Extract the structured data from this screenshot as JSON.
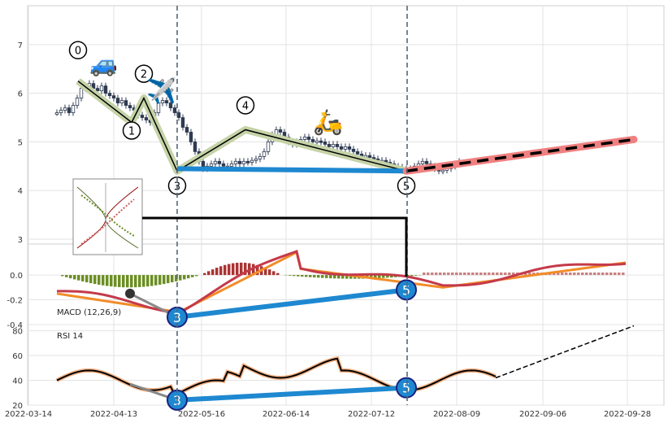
{
  "chart_data": [
    {
      "type": "line",
      "panel": "price",
      "description_of_marks": "candlesticks with wave pattern overlay",
      "ylim": [
        2.9,
        7.8
      ],
      "yticks": [
        3,
        4,
        5,
        6,
        7
      ],
      "price_series": [
        5.6,
        5.65,
        5.7,
        5.6,
        5.75,
        5.9,
        6.1,
        6.15,
        6.2,
        6.1,
        6.05,
        6.15,
        6.0,
        5.95,
        5.9,
        5.8,
        5.85,
        5.75,
        5.7,
        5.65,
        5.55,
        5.5,
        5.45,
        5.4,
        5.6,
        5.8,
        5.85,
        5.8,
        5.7,
        5.6,
        5.5,
        5.3,
        5.2,
        5.0,
        4.8,
        4.6,
        4.45,
        4.5,
        4.55,
        4.6,
        4.55,
        4.5,
        4.5,
        4.55,
        4.6,
        4.55,
        4.6,
        4.58,
        4.62,
        4.65,
        4.7,
        4.8,
        5.0,
        5.15,
        5.25,
        5.2,
        5.1,
        5.0,
        4.95,
        5.0,
        5.05,
        5.1,
        5.05,
        5.0,
        5.02,
        5.0,
        4.95,
        4.9,
        4.95,
        4.9,
        4.85,
        4.9,
        4.85,
        4.8,
        4.75,
        4.7,
        4.72,
        4.68,
        4.65,
        4.6,
        4.62,
        4.58,
        4.55,
        4.5,
        4.48,
        4.45,
        4.42,
        4.45,
        4.5,
        4.55,
        4.6,
        4.55,
        4.5,
        4.45,
        4.4,
        4.42,
        4.45,
        4.5,
        4.55,
        4.6
      ],
      "wave_points": [
        {
          "label": "0",
          "value": 6.25
        },
        {
          "label": "1",
          "value": 5.4
        },
        {
          "label": "2",
          "value": 5.9
        },
        {
          "label": "3",
          "value": 4.4
        },
        {
          "label": "4",
          "value": 5.25
        },
        {
          "label": "5",
          "value": 4.4
        }
      ],
      "support_line": {
        "from": 4.45,
        "to": 4.4
      },
      "projection": {
        "from": 4.4,
        "to": 5.05
      }
    },
    {
      "type": "bar",
      "panel": "macd",
      "label": "MACD (12,26,9)",
      "ylim": [
        -0.4,
        0.25
      ],
      "yticks": [
        -0.4,
        -0.2,
        0.0
      ],
      "divergence_labels": [
        "3",
        "5"
      ],
      "divergence_values": [
        -0.34,
        -0.12
      ]
    },
    {
      "type": "line",
      "panel": "rsi",
      "label": "RSI 14",
      "ylim": [
        20,
        85
      ],
      "yticks": [
        20,
        40,
        60,
        80
      ],
      "divergence_labels": [
        "3",
        "5"
      ],
      "divergence_values": [
        24,
        34
      ]
    }
  ],
  "x_axis": {
    "ticks": [
      "2022-03-14",
      "2022-04-13",
      "2022-05-16",
      "2022-06-14",
      "2022-07-12",
      "2022-08-09",
      "2022-09-06",
      "2022-09-28"
    ]
  },
  "icons": [
    "car-icon",
    "airplane-icon",
    "scooter-icon"
  ]
}
